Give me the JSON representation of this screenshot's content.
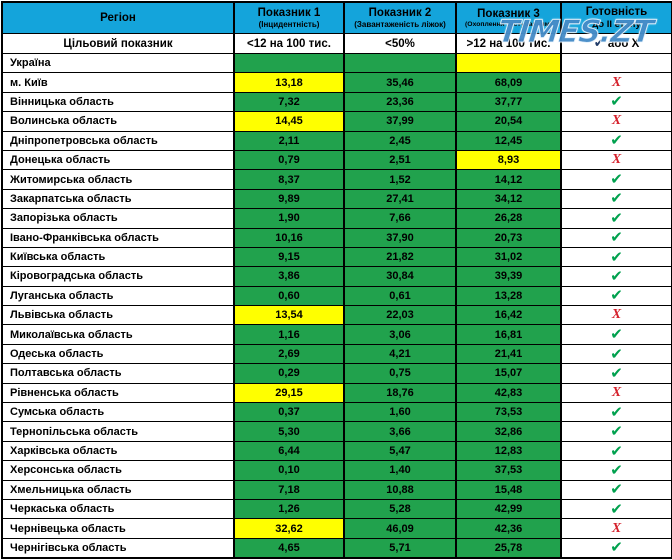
{
  "watermark": "TIMES.ZT",
  "palette": {
    "header_blue": "#14A4DB",
    "cell_green": "#21A24D",
    "cell_yellow": "#FFFF00",
    "cell_gray": "#BFBFBF",
    "check_green": "#00A14E",
    "cross_red": "#D5202B",
    "target_check_navy": "#1F3A66"
  },
  "icons": {
    "pass": "✔",
    "fail": "Х"
  },
  "chart_data": {
    "type": "table",
    "header": {
      "region": "Регіон",
      "cols": [
        {
          "title": "Показник 1",
          "subtitle": "(Інцидентність)"
        },
        {
          "title": "Показник 2",
          "subtitle": "(Завантаженість ліжок)"
        },
        {
          "title": "Показник 3",
          "subtitle": "(Охоплення тестуванням)"
        },
        {
          "title": "Готовність",
          "subtitle": "до ІІ етапу"
        }
      ]
    },
    "target_row": {
      "label": "Цільовий показник",
      "values": [
        "<12 на 100 тис.",
        "<50%",
        ">12 на 100 тис."
      ],
      "check_icon": "✔",
      "check_label": " або Х"
    },
    "rows": [
      {
        "region": "Україна",
        "values": [
          "",
          "",
          ""
        ],
        "colors": [
          "green",
          "green",
          "yellow"
        ],
        "status": "none"
      },
      {
        "region": "м. Київ",
        "values": [
          "13,18",
          "35,46",
          "68,09"
        ],
        "colors": [
          "yellow",
          "green",
          "green"
        ],
        "status": "fail"
      },
      {
        "region": "Вінницька область",
        "values": [
          "7,32",
          "23,36",
          "37,77"
        ],
        "colors": [
          "green",
          "green",
          "green"
        ],
        "status": "pass"
      },
      {
        "region": "Волинська область",
        "values": [
          "14,45",
          "37,99",
          "20,54"
        ],
        "colors": [
          "yellow",
          "green",
          "green"
        ],
        "status": "fail"
      },
      {
        "region": "Дніпропетровська область",
        "values": [
          "2,11",
          "2,45",
          "12,45"
        ],
        "colors": [
          "green",
          "green",
          "green"
        ],
        "status": "pass"
      },
      {
        "region": "Донецька область",
        "values": [
          "0,79",
          "2,51",
          "8,93"
        ],
        "colors": [
          "green",
          "green",
          "yellow"
        ],
        "status": "fail"
      },
      {
        "region": "Житомирська область",
        "values": [
          "8,37",
          "1,52",
          "14,12"
        ],
        "colors": [
          "green",
          "green",
          "green"
        ],
        "status": "pass"
      },
      {
        "region": "Закарпатська область",
        "values": [
          "9,89",
          "27,41",
          "34,12"
        ],
        "colors": [
          "green",
          "green",
          "green"
        ],
        "status": "pass"
      },
      {
        "region": "Запорізька область",
        "values": [
          "1,90",
          "7,66",
          "26,28"
        ],
        "colors": [
          "green",
          "green",
          "green"
        ],
        "status": "pass"
      },
      {
        "region": "Івано-Франківська область",
        "values": [
          "10,16",
          "37,90",
          "20,73"
        ],
        "colors": [
          "green",
          "green",
          "green"
        ],
        "status": "pass"
      },
      {
        "region": "Київська область",
        "values": [
          "9,15",
          "21,82",
          "31,02"
        ],
        "colors": [
          "green",
          "green",
          "green"
        ],
        "status": "pass"
      },
      {
        "region": "Кіровоградська область",
        "values": [
          "3,86",
          "30,84",
          "39,39"
        ],
        "colors": [
          "green",
          "green",
          "green"
        ],
        "status": "pass"
      },
      {
        "region": "Луганська область",
        "values": [
          "0,60",
          "0,61",
          "13,28"
        ],
        "colors": [
          "green",
          "green",
          "green"
        ],
        "status": "pass"
      },
      {
        "region": "Львівська область",
        "values": [
          "13,54",
          "22,03",
          "16,42"
        ],
        "colors": [
          "yellow",
          "green",
          "green"
        ],
        "status": "fail"
      },
      {
        "region": "Миколаївська область",
        "values": [
          "1,16",
          "3,06",
          "16,81"
        ],
        "colors": [
          "green",
          "green",
          "green"
        ],
        "status": "pass"
      },
      {
        "region": "Одеська область",
        "values": [
          "2,69",
          "4,21",
          "21,41"
        ],
        "colors": [
          "green",
          "green",
          "green"
        ],
        "status": "pass"
      },
      {
        "region": "Полтавська область",
        "values": [
          "0,29",
          "0,75",
          "15,07"
        ],
        "colors": [
          "green",
          "green",
          "green"
        ],
        "status": "pass"
      },
      {
        "region": "Рівненська область",
        "values": [
          "29,15",
          "18,76",
          "42,83"
        ],
        "colors": [
          "yellow",
          "green",
          "green"
        ],
        "status": "fail"
      },
      {
        "region": "Сумська область",
        "values": [
          "0,37",
          "1,60",
          "73,53"
        ],
        "colors": [
          "green",
          "green",
          "green"
        ],
        "status": "pass"
      },
      {
        "region": "Тернопільська область",
        "values": [
          "5,30",
          "3,66",
          "32,86"
        ],
        "colors": [
          "green",
          "green",
          "green"
        ],
        "status": "pass"
      },
      {
        "region": "Харківська область",
        "values": [
          "6,44",
          "5,47",
          "12,83"
        ],
        "colors": [
          "green",
          "green",
          "green"
        ],
        "status": "pass"
      },
      {
        "region": "Херсонська область",
        "values": [
          "0,10",
          "1,40",
          "37,53"
        ],
        "colors": [
          "green",
          "green",
          "green"
        ],
        "status": "pass"
      },
      {
        "region": "Хмельницька область",
        "values": [
          "7,18",
          "10,88",
          "15,48"
        ],
        "colors": [
          "green",
          "green",
          "green"
        ],
        "status": "pass"
      },
      {
        "region": "Черкаська область",
        "values": [
          "1,26",
          "5,28",
          "42,99"
        ],
        "colors": [
          "green",
          "green",
          "green"
        ],
        "status": "pass"
      },
      {
        "region": "Чернівецька область",
        "values": [
          "32,62",
          "46,09",
          "42,36"
        ],
        "colors": [
          "yellow",
          "green",
          "green"
        ],
        "status": "fail"
      },
      {
        "region": "Чернігівська область",
        "values": [
          "4,65",
          "5,71",
          "25,78"
        ],
        "colors": [
          "green",
          "green",
          "green"
        ],
        "status": "pass"
      }
    ]
  }
}
